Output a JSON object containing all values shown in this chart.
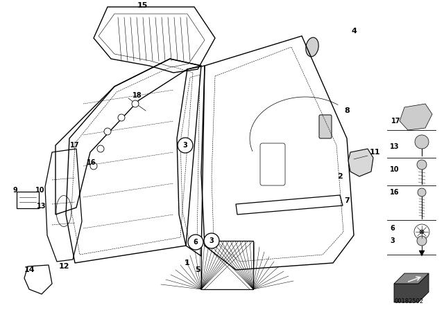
{
  "bg_color": "#ffffff",
  "diagram_id": "00182502",
  "lw": 0.9,
  "thin": 0.5
}
